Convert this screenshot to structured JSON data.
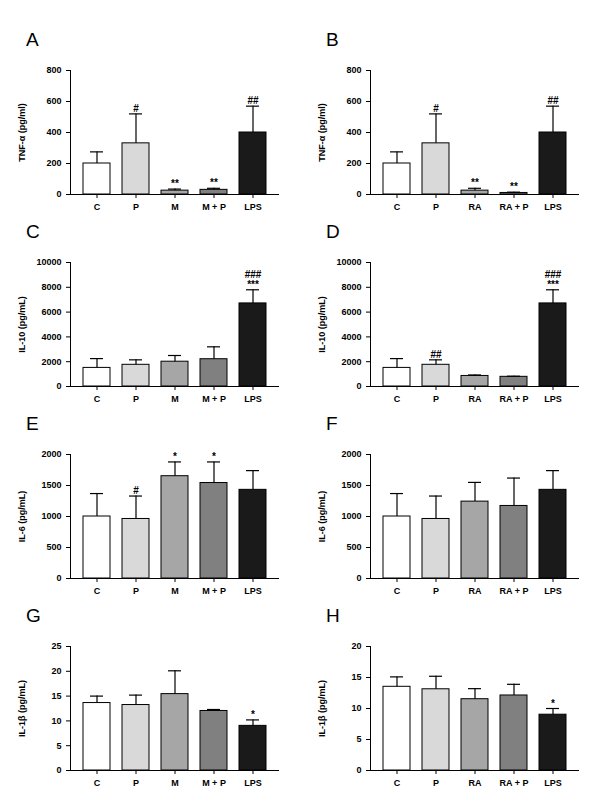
{
  "chart_data": [
    {
      "type": "bar",
      "title": "A",
      "y_label": "TNF-α (pg/ml)",
      "categories": [
        "C",
        "P",
        "M",
        "M + P",
        "LPS"
      ],
      "values": [
        200,
        330,
        25,
        30,
        400
      ],
      "errors": [
        75,
        190,
        10,
        10,
        170
      ],
      "annotations": [
        null,
        [
          "#"
        ],
        [
          "**"
        ],
        [
          "**"
        ],
        [
          "##"
        ]
      ],
      "colors": [
        "#ffffff",
        "#d9d9d9",
        "#a6a6a6",
        "#808080",
        "#1a1a1a"
      ],
      "ylim": [
        0,
        800
      ],
      "yticks": [
        0,
        200,
        400,
        600,
        800
      ],
      "grid": false
    },
    {
      "type": "bar",
      "title": "B",
      "y_label": "TNF-α (pg/ml)",
      "categories": [
        "C",
        "P",
        "RA",
        "RA + P",
        "LPS"
      ],
      "values": [
        200,
        330,
        25,
        10,
        400
      ],
      "errors": [
        75,
        190,
        15,
        5,
        170
      ],
      "annotations": [
        null,
        [
          "#"
        ],
        [
          "**"
        ],
        [
          "**"
        ],
        [
          "##"
        ]
      ],
      "colors": [
        "#ffffff",
        "#d9d9d9",
        "#a6a6a6",
        "#808080",
        "#1a1a1a"
      ],
      "ylim": [
        0,
        800
      ],
      "yticks": [
        0,
        200,
        400,
        600,
        800
      ],
      "grid": false
    },
    {
      "type": "bar",
      "title": "C",
      "y_label": "IL-10 (pg/mL)",
      "categories": [
        "C",
        "P",
        "M",
        "M + P",
        "LPS"
      ],
      "values": [
        1500,
        1750,
        2000,
        2200,
        6700
      ],
      "errors": [
        750,
        400,
        500,
        1000,
        1100
      ],
      "annotations": [
        null,
        null,
        null,
        null,
        [
          "###",
          "***"
        ]
      ],
      "colors": [
        "#ffffff",
        "#d9d9d9",
        "#a6a6a6",
        "#808080",
        "#1a1a1a"
      ],
      "ylim": [
        0,
        10000
      ],
      "yticks": [
        0,
        2000,
        4000,
        6000,
        8000,
        10000
      ],
      "grid": false
    },
    {
      "type": "bar",
      "title": "D",
      "y_label": "IL-10 (pg/mL)",
      "categories": [
        "C",
        "P",
        "RA",
        "RA + P",
        "LPS"
      ],
      "values": [
        1500,
        1750,
        850,
        780,
        6700
      ],
      "errors": [
        750,
        400,
        80,
        50,
        1100
      ],
      "annotations": [
        null,
        [
          "##"
        ],
        null,
        null,
        [
          "###",
          "***"
        ]
      ],
      "colors": [
        "#ffffff",
        "#d9d9d9",
        "#a6a6a6",
        "#808080",
        "#1a1a1a"
      ],
      "ylim": [
        0,
        10000
      ],
      "yticks": [
        0,
        2000,
        4000,
        6000,
        8000,
        10000
      ],
      "grid": false
    },
    {
      "type": "bar",
      "title": "E",
      "y_label": "IL-6 (pg/mL)",
      "categories": [
        "C",
        "P",
        "M",
        "M + P",
        "LPS"
      ],
      "values": [
        1000,
        960,
        1650,
        1540,
        1430
      ],
      "errors": [
        370,
        370,
        230,
        340,
        310
      ],
      "annotations": [
        null,
        [
          "#"
        ],
        [
          "*"
        ],
        [
          "*"
        ],
        null
      ],
      "colors": [
        "#ffffff",
        "#d9d9d9",
        "#a6a6a6",
        "#808080",
        "#1a1a1a"
      ],
      "ylim": [
        0,
        2000
      ],
      "yticks": [
        0,
        500,
        1000,
        1500,
        2000
      ],
      "grid": false
    },
    {
      "type": "bar",
      "title": "F",
      "y_label": "IL-6 (pg/mL)",
      "categories": [
        "C",
        "P",
        "RA",
        "RA + P",
        "LPS"
      ],
      "values": [
        1000,
        960,
        1240,
        1170,
        1430
      ],
      "errors": [
        370,
        370,
        310,
        450,
        310
      ],
      "annotations": [
        null,
        null,
        null,
        null,
        null
      ],
      "colors": [
        "#ffffff",
        "#d9d9d9",
        "#a6a6a6",
        "#808080",
        "#1a1a1a"
      ],
      "ylim": [
        0,
        2000
      ],
      "yticks": [
        0,
        500,
        1000,
        1500,
        2000
      ],
      "grid": false
    },
    {
      "type": "bar",
      "title": "G",
      "y_label": "IL-1β (pg/mL)",
      "categories": [
        "C",
        "P",
        "M",
        "M + P",
        "LPS"
      ],
      "values": [
        13.6,
        13.2,
        15.4,
        12,
        9
      ],
      "errors": [
        1.4,
        2,
        4.7,
        0.3,
        1.2
      ],
      "annotations": [
        null,
        null,
        null,
        null,
        [
          "*"
        ]
      ],
      "colors": [
        "#ffffff",
        "#d9d9d9",
        "#a6a6a6",
        "#808080",
        "#1a1a1a"
      ],
      "ylim": [
        0,
        25
      ],
      "yticks": [
        0,
        5,
        10,
        15,
        20,
        25
      ],
      "grid": false
    },
    {
      "type": "bar",
      "title": "H",
      "y_label": "IL-1β (pg/mL)",
      "categories": [
        "C",
        "P",
        "RA",
        "RA + P",
        "LPS"
      ],
      "values": [
        13.5,
        13.1,
        11.5,
        12.1,
        9
      ],
      "errors": [
        1.6,
        2.1,
        1.7,
        1.8,
        1
      ],
      "annotations": [
        null,
        null,
        null,
        null,
        [
          "*"
        ]
      ],
      "colors": [
        "#ffffff",
        "#d9d9d9",
        "#a6a6a6",
        "#808080",
        "#1a1a1a"
      ],
      "ylim": [
        0,
        20
      ],
      "yticks": [
        0,
        5,
        10,
        15,
        20
      ],
      "grid": false
    }
  ]
}
